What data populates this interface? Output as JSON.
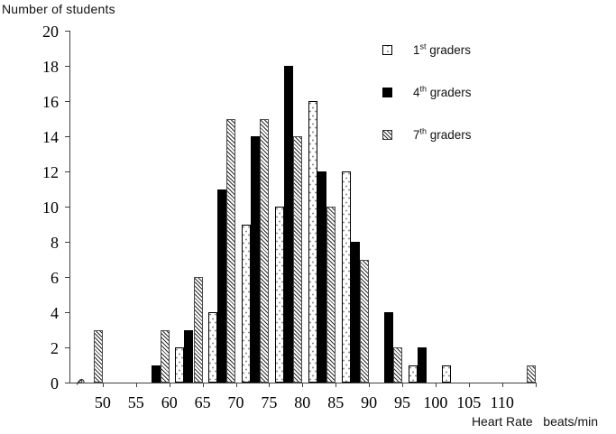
{
  "title": "Number of students",
  "x_axis_title_display": "Heart Rate   beats/min",
  "legend": {
    "position": "top-right",
    "items": [
      {
        "base": "1",
        "sup": "st",
        "rest": " graders",
        "swatch": "dotted-white"
      },
      {
        "base": "4",
        "sup": "th",
        "rest": " graders",
        "swatch": "solid-black"
      },
      {
        "base": "7",
        "sup": "th",
        "rest": " graders",
        "swatch": "diagonal-hatch"
      }
    ]
  },
  "colors": {
    "background": "#ffffff",
    "axis": "#3f3f3f",
    "bar_black": "#000000",
    "bar_white": "#ffffff",
    "hatch_line": "#2f2f2f",
    "text": "#000000"
  },
  "chart_data": {
    "type": "bar",
    "title": "Number of students",
    "xlabel": "Heart Rate beats/min",
    "ylabel": "Number of students",
    "ylim": [
      0,
      20
    ],
    "y_ticks": [
      0,
      2,
      4,
      6,
      8,
      10,
      12,
      14,
      16,
      18,
      20
    ],
    "x_ticks": [
      50,
      55,
      60,
      65,
      70,
      75,
      80,
      85,
      90,
      95,
      100,
      105,
      110
    ],
    "bin_width_bpm": 5,
    "categories": [
      "45-50",
      "50-55",
      "55-60",
      "60-65",
      "65-70",
      "70-75",
      "75-80",
      "80-85",
      "85-90",
      "90-95",
      "95-100",
      "100-105",
      "105-110",
      "110-115"
    ],
    "series": [
      {
        "name": "1st graders",
        "swatch": "dotted-white",
        "values": [
          0,
          0,
          0,
          2,
          4,
          9,
          10,
          16,
          12,
          0,
          1,
          1,
          0,
          0
        ]
      },
      {
        "name": "4th graders",
        "swatch": "solid-black",
        "values": [
          0,
          0,
          1,
          3,
          11,
          14,
          18,
          12,
          8,
          4,
          2,
          0,
          0,
          0
        ]
      },
      {
        "name": "7th graders",
        "swatch": "diagonal-hatch",
        "values": [
          3,
          0,
          3,
          6,
          15,
          15,
          14,
          10,
          7,
          2,
          0,
          0,
          0,
          1
        ]
      }
    ],
    "baseline_zero_mark": {
      "bin": "45-50",
      "series": "1st graders"
    },
    "grid": false,
    "legend_position": "top-right"
  }
}
